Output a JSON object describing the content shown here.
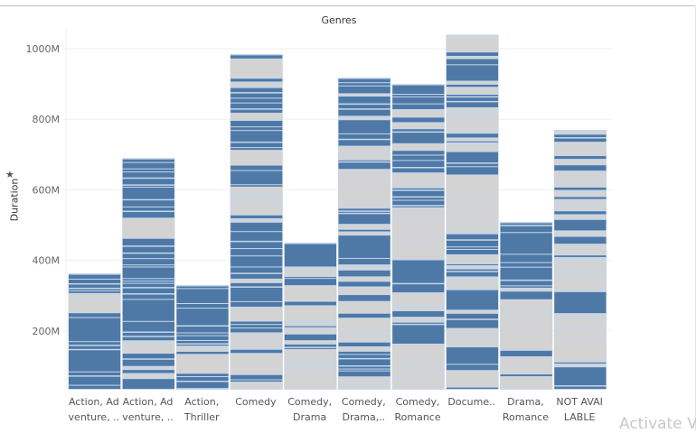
{
  "chart_data": {
    "type": "bar",
    "title": "Genres",
    "xlabel": "",
    "ylabel": "Duration",
    "ylim": [
      0,
      1050
    ],
    "y_unit": "M",
    "y_ticks": [
      "200M",
      "400M",
      "600M",
      "800M",
      "1000M"
    ],
    "y_tick_values": [
      200,
      400,
      600,
      800,
      1000
    ],
    "categories": [
      [
        "Action, Ad",
        "venture, .."
      ],
      [
        "Action, Ad",
        "venture, .."
      ],
      [
        "Action,",
        "Thriller"
      ],
      [
        "Comedy"
      ],
      [
        "Comedy,",
        "Drama"
      ],
      [
        "Comedy,",
        "Drama,.."
      ],
      [
        "Comedy,",
        "Romance"
      ],
      [
        "Docume.."
      ],
      [
        "Drama,",
        "Romance"
      ],
      [
        "NOT AVAI",
        "LABLE"
      ]
    ],
    "values": [
      363,
      690,
      330,
      985,
      450,
      918,
      900,
      1040,
      509,
      770
    ],
    "colors": {
      "primary": "#4e79a7",
      "secondary": "#d3d3d3",
      "separator": "#c6d6ea"
    },
    "grid": true,
    "legend": "none",
    "stacked_segments": true
  },
  "axis": {
    "pin_icon": "pin-icon"
  },
  "overlay": {
    "watermark": "Activate V"
  }
}
